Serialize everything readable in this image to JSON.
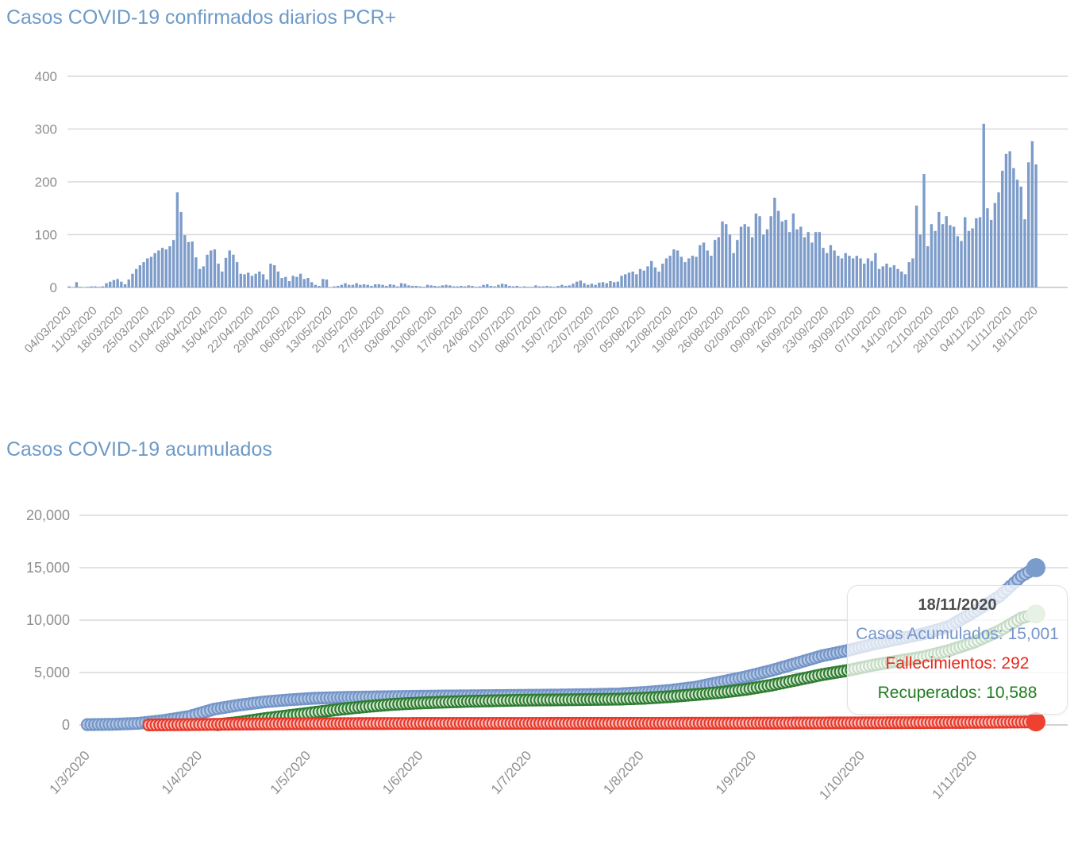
{
  "colors": {
    "title_blue": "#6d9ac7",
    "bar_fill": "#7d9cca",
    "axis_text": "#8e8e8e",
    "gridline": "#d9d9d9",
    "zero_line": "#c4c4c4",
    "series_blue": "#7495c8",
    "series_blue_fill": "#b3c7e3",
    "series_green": "#2f7d33",
    "series_green_fill": "#d5e8d0",
    "series_red": "#e8392b",
    "series_red_fill": "#f6beb8",
    "end_dot_blue": "#7a9bcb",
    "end_dot_green": "#a9cfa0",
    "end_dot_red": "#ef4130"
  },
  "tooltip": {
    "date": "18/11/2020",
    "casos": "Casos Acumulados: 15,001",
    "fallecimientos": "Fallecimientos: 292",
    "recuperados": "Recuperados: 10,588"
  },
  "chart_data": [
    {
      "type": "bar",
      "title": "Casos COVID-19 confirmados diarios PCR+",
      "xlabel": "",
      "ylabel": "",
      "ylim": [
        0,
        400
      ],
      "y_ticks": [
        400,
        300,
        200,
        100,
        0
      ],
      "grid": true,
      "start_date": "04/03/2020",
      "end_date": "18/11/2020",
      "x_tick_every_days": 7,
      "x_tick_labels": [
        "04/03/2020",
        "11/03/2020",
        "18/03/2020",
        "25/03/2020",
        "01/04/2020",
        "08/04/2020",
        "15/04/2020",
        "22/04/2020",
        "29/04/2020",
        "06/05/2020",
        "13/05/2020",
        "20/05/2020",
        "27/05/2020",
        "03/06/2020",
        "10/06/2020",
        "17/06/2020",
        "24/06/2020",
        "01/07/2020",
        "08/07/2020",
        "15/07/2020",
        "22/07/2020",
        "29/07/2020",
        "05/08/2020",
        "12/08/2020",
        "19/08/2020",
        "26/08/2020",
        "02/09/2020",
        "09/09/2020",
        "16/09/2020",
        "23/09/2020",
        "30/09/2020",
        "07/10/2020",
        "14/10/2020",
        "21/10/2020",
        "28/10/2020",
        "04/11/2020",
        "11/11/2020",
        "18/11/2020"
      ],
      "values": [
        2,
        0,
        10,
        1,
        0,
        1,
        2,
        2,
        1,
        2,
        8,
        11,
        14,
        16,
        11,
        6,
        15,
        26,
        35,
        42,
        48,
        55,
        58,
        65,
        70,
        75,
        72,
        78,
        90,
        180,
        143,
        99,
        86,
        87,
        57,
        35,
        40,
        62,
        70,
        72,
        45,
        30,
        56,
        70,
        62,
        48,
        26,
        25,
        28,
        22,
        26,
        30,
        25,
        15,
        45,
        42,
        30,
        18,
        20,
        12,
        22,
        20,
        26,
        16,
        18,
        10,
        5,
        3,
        16,
        15,
        0,
        2,
        3,
        5,
        8,
        5,
        5,
        8,
        5,
        6,
        5,
        3,
        6,
        6,
        5,
        3,
        6,
        5,
        2,
        8,
        7,
        4,
        3,
        3,
        2,
        1,
        5,
        4,
        3,
        2,
        4,
        5,
        4,
        2,
        2,
        3,
        2,
        4,
        3,
        1,
        2,
        5,
        6,
        3,
        2,
        5,
        7,
        6,
        3,
        2,
        3,
        1,
        2,
        1,
        1,
        4,
        2,
        2,
        3,
        2,
        1,
        3,
        5,
        3,
        4,
        7,
        11,
        13,
        8,
        5,
        7,
        5,
        9,
        10,
        8,
        12,
        10,
        11,
        22,
        25,
        28,
        30,
        25,
        35,
        32,
        40,
        50,
        38,
        30,
        45,
        55,
        60,
        72,
        70,
        58,
        48,
        55,
        60,
        58,
        80,
        85,
        70,
        60,
        90,
        95,
        125,
        120,
        100,
        65,
        90,
        115,
        120,
        115,
        95,
        140,
        135,
        100,
        110,
        135,
        170,
        145,
        125,
        128,
        105,
        140,
        110,
        115,
        95,
        105,
        85,
        105,
        105,
        75,
        65,
        80,
        70,
        60,
        55,
        65,
        60,
        55,
        60,
        55,
        45,
        55,
        50,
        65,
        35,
        40,
        45,
        38,
        42,
        35,
        30,
        25,
        48,
        55,
        155,
        100,
        215,
        78,
        120,
        107,
        143,
        120,
        135,
        118,
        115,
        97,
        88,
        133,
        107,
        112,
        131,
        133,
        310,
        150,
        128,
        160,
        180,
        221,
        253,
        258,
        226,
        204,
        191,
        129,
        237,
        277,
        233
      ]
    },
    {
      "type": "scatter",
      "title": "Casos COVID-19 acumulados",
      "xlabel": "",
      "ylabel": "",
      "ylim": [
        0,
        20000
      ],
      "y_tick_values": [
        20000,
        15000,
        10000,
        5000,
        0
      ],
      "y_tick_labels": [
        "20,000",
        "15,000",
        "10,000",
        "5,000",
        "0"
      ],
      "grid": true,
      "x_ticks": [
        {
          "label": "1/3/2020",
          "day": 0
        },
        {
          "label": "1/4/2020",
          "day": 31
        },
        {
          "label": "1/5/2020",
          "day": 61
        },
        {
          "label": "1/6/2020",
          "day": 92
        },
        {
          "label": "1/7/2020",
          "day": 122
        },
        {
          "label": "1/8/2020",
          "day": 153
        },
        {
          "label": "1/9/2020",
          "day": 184
        },
        {
          "label": "1/10/2020",
          "day": 214
        },
        {
          "label": "1/11/2020",
          "day": 245
        }
      ],
      "total_days": 262,
      "series": [
        {
          "name": "Casos Acumulados",
          "color": "#7495c8",
          "fill": "#b3c7e3",
          "end_dot_color": "#7a9bcb",
          "start_day": 0,
          "end_value": 15001,
          "anchors": [
            [
              0,
              30
            ],
            [
              7,
              60
            ],
            [
              14,
              150
            ],
            [
              21,
              420
            ],
            [
              28,
              800
            ],
            [
              35,
              1500
            ],
            [
              42,
              1900
            ],
            [
              49,
              2200
            ],
            [
              56,
              2400
            ],
            [
              63,
              2550
            ],
            [
              70,
              2620
            ],
            [
              77,
              2660
            ],
            [
              84,
              2700
            ],
            [
              91,
              2730
            ],
            [
              98,
              2760
            ],
            [
              105,
              2780
            ],
            [
              112,
              2800
            ],
            [
              119,
              2820
            ],
            [
              126,
              2840
            ],
            [
              133,
              2870
            ],
            [
              140,
              2900
            ],
            [
              147,
              2960
            ],
            [
              154,
              3100
            ],
            [
              161,
              3300
            ],
            [
              168,
              3600
            ],
            [
              175,
              4100
            ],
            [
              182,
              4600
            ],
            [
              189,
              5200
            ],
            [
              196,
              5900
            ],
            [
              203,
              6600
            ],
            [
              210,
              7100
            ],
            [
              217,
              7700
            ],
            [
              224,
              8200
            ],
            [
              231,
              8700
            ],
            [
              238,
              9400
            ],
            [
              245,
              10800
            ],
            [
              252,
              12300
            ],
            [
              258,
              14200
            ],
            [
              262,
              15001
            ]
          ]
        },
        {
          "name": "Recuperados",
          "color": "#2f7d33",
          "fill": "#d5e8d0",
          "end_dot_color": "#a9cfa0",
          "start_day": 36,
          "end_value": 10588,
          "anchors": [
            [
              36,
              30
            ],
            [
              42,
              250
            ],
            [
              49,
              600
            ],
            [
              56,
              900
            ],
            [
              63,
              1200
            ],
            [
              70,
              1500
            ],
            [
              77,
              1750
            ],
            [
              84,
              1950
            ],
            [
              91,
              2080
            ],
            [
              98,
              2170
            ],
            [
              105,
              2250
            ],
            [
              112,
              2300
            ],
            [
              119,
              2350
            ],
            [
              126,
              2380
            ],
            [
              133,
              2400
            ],
            [
              140,
              2430
            ],
            [
              147,
              2460
            ],
            [
              154,
              2550
            ],
            [
              161,
              2700
            ],
            [
              168,
              2900
            ],
            [
              175,
              3100
            ],
            [
              182,
              3400
            ],
            [
              189,
              3800
            ],
            [
              196,
              4300
            ],
            [
              203,
              4800
            ],
            [
              210,
              5200
            ],
            [
              217,
              5700
            ],
            [
              224,
              6100
            ],
            [
              231,
              6500
            ],
            [
              238,
              7100
            ],
            [
              245,
              7900
            ],
            [
              252,
              9000
            ],
            [
              258,
              10200
            ],
            [
              262,
              10588
            ]
          ]
        },
        {
          "name": "Fallecimientos",
          "color": "#e8392b",
          "fill": "#f6beb8",
          "end_dot_color": "#ef4130",
          "start_day": 17,
          "end_value": 292,
          "anchors": [
            [
              17,
              2
            ],
            [
              21,
              12
            ],
            [
              28,
              30
            ],
            [
              35,
              55
            ],
            [
              42,
              78
            ],
            [
              49,
              95
            ],
            [
              56,
              108
            ],
            [
              63,
              118
            ],
            [
              70,
              126
            ],
            [
              77,
              132
            ],
            [
              84,
              136
            ],
            [
              91,
              140
            ],
            [
              105,
              144
            ],
            [
              119,
              147
            ],
            [
              133,
              150
            ],
            [
              147,
              153
            ],
            [
              161,
              157
            ],
            [
              175,
              162
            ],
            [
              189,
              172
            ],
            [
              203,
              185
            ],
            [
              217,
              200
            ],
            [
              231,
              220
            ],
            [
              245,
              245
            ],
            [
              255,
              270
            ],
            [
              262,
              292
            ]
          ]
        }
      ]
    }
  ]
}
